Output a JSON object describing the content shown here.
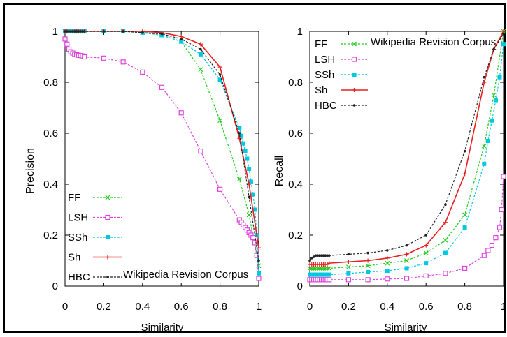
{
  "colors": {
    "ff": "#22cc22",
    "lsh": "#dd44dd",
    "ssh": "#00c8e0",
    "sh": "#e82020",
    "hbc": "#222222",
    "frame": "#000000"
  },
  "chart_data": [
    {
      "type": "line",
      "xlabel": "Similarity",
      "ylabel": "Precision",
      "annotation": "Wikipedia Revision Corpus",
      "legend_position": "bottom-left",
      "xlim": [
        0,
        1
      ],
      "ylim": [
        0,
        1
      ],
      "xticks": [
        "0",
        "0.2",
        "0.4",
        "0.6",
        "0.8",
        "1"
      ],
      "yticks": [
        "0",
        "0.2",
        "0.4",
        "0.6",
        "0.8",
        "1"
      ],
      "series": [
        {
          "name": "FF",
          "key": "ff",
          "marker": "x",
          "x": [
            0,
            0.01,
            0.02,
            0.03,
            0.04,
            0.05,
            0.06,
            0.07,
            0.08,
            0.09,
            0.1,
            0.2,
            0.3,
            0.4,
            0.5,
            0.6,
            0.7,
            0.8,
            0.9,
            0.95,
            1.0
          ],
          "y": [
            1,
            1,
            1,
            1,
            1,
            1,
            1,
            1,
            1,
            1,
            1,
            1,
            1,
            0.995,
            0.985,
            0.96,
            0.85,
            0.65,
            0.42,
            0.28,
            0.08
          ]
        },
        {
          "name": "LSH",
          "key": "lsh",
          "marker": "square",
          "x": [
            0,
            0.01,
            0.02,
            0.03,
            0.04,
            0.05,
            0.06,
            0.07,
            0.08,
            0.09,
            0.1,
            0.2,
            0.3,
            0.4,
            0.5,
            0.6,
            0.7,
            0.8,
            0.9,
            0.91,
            0.92,
            0.93,
            0.94,
            0.95,
            0.96,
            0.97,
            0.98,
            0.99,
            1.0
          ],
          "y": [
            0.97,
            0.95,
            0.93,
            0.92,
            0.915,
            0.91,
            0.908,
            0.906,
            0.905,
            0.904,
            0.9,
            0.895,
            0.88,
            0.84,
            0.78,
            0.68,
            0.53,
            0.38,
            0.26,
            0.25,
            0.24,
            0.23,
            0.22,
            0.21,
            0.2,
            0.19,
            0.17,
            0.12,
            0.03
          ]
        },
        {
          "name": "SSh",
          "key": "ssh",
          "marker": "filled-square",
          "x": [
            0,
            0.01,
            0.02,
            0.03,
            0.04,
            0.05,
            0.06,
            0.07,
            0.08,
            0.09,
            0.1,
            0.2,
            0.3,
            0.4,
            0.5,
            0.6,
            0.7,
            0.8,
            0.9,
            0.91,
            0.92,
            0.93,
            0.94,
            0.95,
            0.96,
            0.97,
            0.98,
            0.99,
            1.0
          ],
          "y": [
            1,
            1,
            1,
            1,
            1,
            1,
            1,
            1,
            1,
            1,
            1,
            1,
            1,
            0.995,
            0.985,
            0.96,
            0.91,
            0.81,
            0.62,
            0.59,
            0.56,
            0.53,
            0.5,
            0.46,
            0.41,
            0.36,
            0.3,
            0.2,
            0.05
          ]
        },
        {
          "name": "Sh",
          "key": "sh",
          "marker": "plus",
          "x": [
            0,
            0.01,
            0.02,
            0.03,
            0.04,
            0.05,
            0.06,
            0.07,
            0.08,
            0.09,
            0.1,
            0.2,
            0.3,
            0.4,
            0.5,
            0.6,
            0.7,
            0.8,
            0.9,
            0.95,
            1.0
          ],
          "y": [
            1,
            1,
            1,
            1,
            1,
            1,
            1,
            1,
            1,
            1,
            1,
            1,
            1,
            1,
            0.995,
            0.98,
            0.95,
            0.86,
            0.58,
            0.4,
            0.15
          ]
        },
        {
          "name": "HBC",
          "key": "hbc",
          "marker": "dot",
          "x": [
            0,
            0.01,
            0.02,
            0.03,
            0.04,
            0.05,
            0.06,
            0.07,
            0.08,
            0.09,
            0.1,
            0.2,
            0.3,
            0.4,
            0.5,
            0.6,
            0.7,
            0.8,
            0.9,
            0.95,
            1.0
          ],
          "y": [
            1,
            1,
            1,
            1,
            1,
            1,
            1,
            1,
            1,
            1,
            1,
            1,
            1,
            0.995,
            0.99,
            0.97,
            0.93,
            0.83,
            0.6,
            0.35,
            0.1
          ]
        }
      ]
    },
    {
      "type": "line",
      "xlabel": "Similarity",
      "ylabel": "Recall",
      "annotation": "Wikipedia Revision Corpus",
      "legend_position": "top-left",
      "xlim": [
        0,
        1
      ],
      "ylim": [
        0,
        1
      ],
      "xticks": [
        "0",
        "0.2",
        "0.4",
        "0.6",
        "0.8",
        "1"
      ],
      "yticks": [
        "0",
        "0.2",
        "0.4",
        "0.6",
        "0.8",
        "1"
      ],
      "series": [
        {
          "name": "FF",
          "key": "ff",
          "marker": "x",
          "x": [
            0,
            0.01,
            0.02,
            0.03,
            0.04,
            0.05,
            0.06,
            0.07,
            0.08,
            0.09,
            0.1,
            0.2,
            0.3,
            0.4,
            0.5,
            0.6,
            0.7,
            0.8,
            0.9,
            0.95,
            1.0
          ],
          "y": [
            0.07,
            0.07,
            0.07,
            0.07,
            0.07,
            0.07,
            0.07,
            0.07,
            0.07,
            0.07,
            0.07,
            0.075,
            0.08,
            0.09,
            0.1,
            0.13,
            0.18,
            0.28,
            0.55,
            0.75,
            1.0
          ]
        },
        {
          "name": "LSH",
          "key": "lsh",
          "marker": "square",
          "x": [
            0,
            0.01,
            0.02,
            0.03,
            0.04,
            0.05,
            0.06,
            0.07,
            0.08,
            0.09,
            0.1,
            0.2,
            0.3,
            0.4,
            0.5,
            0.6,
            0.7,
            0.8,
            0.9,
            0.92,
            0.94,
            0.96,
            0.98,
            0.99,
            1.0
          ],
          "y": [
            0.025,
            0.025,
            0.025,
            0.025,
            0.025,
            0.025,
            0.025,
            0.025,
            0.025,
            0.025,
            0.025,
            0.025,
            0.025,
            0.028,
            0.03,
            0.04,
            0.05,
            0.07,
            0.12,
            0.14,
            0.16,
            0.19,
            0.23,
            0.3,
            0.43
          ]
        },
        {
          "name": "SSh",
          "key": "ssh",
          "marker": "filled-square",
          "x": [
            0,
            0.01,
            0.02,
            0.03,
            0.04,
            0.05,
            0.06,
            0.07,
            0.08,
            0.09,
            0.1,
            0.2,
            0.3,
            0.4,
            0.5,
            0.6,
            0.7,
            0.8,
            0.9,
            0.92,
            0.94,
            0.96,
            0.98,
            1.0
          ],
          "y": [
            0.045,
            0.045,
            0.045,
            0.045,
            0.045,
            0.045,
            0.045,
            0.045,
            0.045,
            0.045,
            0.045,
            0.05,
            0.055,
            0.06,
            0.07,
            0.09,
            0.13,
            0.23,
            0.48,
            0.57,
            0.65,
            0.73,
            0.82,
            0.95
          ]
        },
        {
          "name": "Sh",
          "key": "sh",
          "marker": "plus",
          "x": [
            0,
            0.01,
            0.02,
            0.03,
            0.04,
            0.05,
            0.06,
            0.07,
            0.08,
            0.09,
            0.1,
            0.2,
            0.3,
            0.4,
            0.5,
            0.6,
            0.7,
            0.8,
            0.9,
            0.95,
            1.0
          ],
          "y": [
            0.085,
            0.085,
            0.085,
            0.085,
            0.085,
            0.085,
            0.085,
            0.085,
            0.085,
            0.085,
            0.09,
            0.095,
            0.1,
            0.11,
            0.125,
            0.16,
            0.25,
            0.44,
            0.8,
            0.93,
            1.0
          ]
        },
        {
          "name": "HBC",
          "key": "hbc",
          "marker": "dot",
          "x": [
            0,
            0.01,
            0.02,
            0.03,
            0.04,
            0.05,
            0.06,
            0.07,
            0.08,
            0.09,
            0.1,
            0.2,
            0.3,
            0.4,
            0.5,
            0.6,
            0.7,
            0.8,
            0.9,
            0.95,
            1.0
          ],
          "y": [
            0.1,
            0.11,
            0.115,
            0.12,
            0.12,
            0.12,
            0.12,
            0.12,
            0.12,
            0.12,
            0.12,
            0.125,
            0.13,
            0.14,
            0.16,
            0.2,
            0.32,
            0.53,
            0.82,
            0.93,
            0.99
          ]
        }
      ]
    }
  ]
}
